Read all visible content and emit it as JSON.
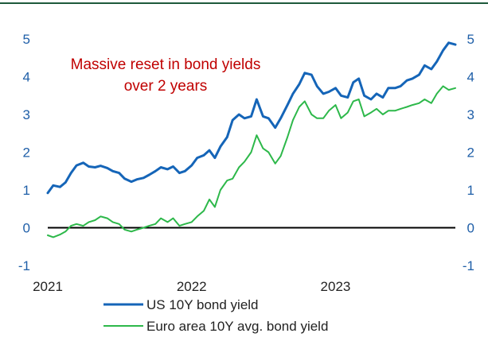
{
  "chart_data": {
    "type": "line",
    "title": "",
    "xlabel": "",
    "ylabel": "",
    "xlim": [
      "2021-01-01",
      "2023-11-01"
    ],
    "ylim": [
      -1,
      5
    ],
    "x_ticks": [
      "2021",
      "2022",
      "2023"
    ],
    "y_ticks": [
      "-1",
      "0",
      "1",
      "2",
      "3",
      "4",
      "5"
    ],
    "grid": false,
    "zero_line": true,
    "dual_y_axis_labels": true,
    "legend_position": "bottom",
    "annotation": {
      "lines": [
        "Massive reset in bond yields",
        "over 2 years"
      ],
      "color": "#c00000"
    },
    "colors": {
      "top_rule": "#1e5a3c",
      "axis_text": "#1f5fa8",
      "zero_line": "#000000"
    },
    "series": [
      {
        "name": "US 10Y bond yield",
        "color": "#1565b8",
        "points": [
          [
            "2021-01-01",
            0.92
          ],
          [
            "2021-01-15",
            1.12
          ],
          [
            "2021-02-01",
            1.08
          ],
          [
            "2021-02-15",
            1.2
          ],
          [
            "2021-03-01",
            1.45
          ],
          [
            "2021-03-15",
            1.65
          ],
          [
            "2021-04-01",
            1.72
          ],
          [
            "2021-04-15",
            1.62
          ],
          [
            "2021-05-01",
            1.6
          ],
          [
            "2021-05-15",
            1.64
          ],
          [
            "2021-06-01",
            1.58
          ],
          [
            "2021-06-15",
            1.5
          ],
          [
            "2021-07-01",
            1.45
          ],
          [
            "2021-07-15",
            1.3
          ],
          [
            "2021-08-01",
            1.22
          ],
          [
            "2021-08-15",
            1.28
          ],
          [
            "2021-09-01",
            1.32
          ],
          [
            "2021-09-15",
            1.4
          ],
          [
            "2021-10-01",
            1.5
          ],
          [
            "2021-10-15",
            1.6
          ],
          [
            "2021-11-01",
            1.55
          ],
          [
            "2021-11-15",
            1.62
          ],
          [
            "2021-12-01",
            1.45
          ],
          [
            "2021-12-15",
            1.5
          ],
          [
            "2022-01-01",
            1.65
          ],
          [
            "2022-01-15",
            1.85
          ],
          [
            "2022-02-01",
            1.92
          ],
          [
            "2022-02-15",
            2.05
          ],
          [
            "2022-03-01",
            1.85
          ],
          [
            "2022-03-15",
            2.15
          ],
          [
            "2022-04-01",
            2.4
          ],
          [
            "2022-04-15",
            2.85
          ],
          [
            "2022-05-01",
            3.0
          ],
          [
            "2022-05-15",
            2.9
          ],
          [
            "2022-06-01",
            2.95
          ],
          [
            "2022-06-15",
            3.4
          ],
          [
            "2022-07-01",
            2.95
          ],
          [
            "2022-07-15",
            2.9
          ],
          [
            "2022-08-01",
            2.65
          ],
          [
            "2022-08-15",
            2.9
          ],
          [
            "2022-09-01",
            3.25
          ],
          [
            "2022-09-15",
            3.55
          ],
          [
            "2022-10-01",
            3.8
          ],
          [
            "2022-10-15",
            4.1
          ],
          [
            "2022-11-01",
            4.05
          ],
          [
            "2022-11-15",
            3.75
          ],
          [
            "2022-12-01",
            3.55
          ],
          [
            "2022-12-15",
            3.6
          ],
          [
            "2023-01-01",
            3.7
          ],
          [
            "2023-01-15",
            3.5
          ],
          [
            "2023-02-01",
            3.45
          ],
          [
            "2023-02-15",
            3.85
          ],
          [
            "2023-03-01",
            3.95
          ],
          [
            "2023-03-15",
            3.5
          ],
          [
            "2023-04-01",
            3.4
          ],
          [
            "2023-04-15",
            3.55
          ],
          [
            "2023-05-01",
            3.45
          ],
          [
            "2023-05-15",
            3.7
          ],
          [
            "2023-06-01",
            3.7
          ],
          [
            "2023-06-15",
            3.75
          ],
          [
            "2023-07-01",
            3.9
          ],
          [
            "2023-07-15",
            3.95
          ],
          [
            "2023-08-01",
            4.05
          ],
          [
            "2023-08-15",
            4.3
          ],
          [
            "2023-09-01",
            4.2
          ],
          [
            "2023-09-15",
            4.4
          ],
          [
            "2023-10-01",
            4.7
          ],
          [
            "2023-10-15",
            4.9
          ],
          [
            "2023-11-01",
            4.85
          ]
        ]
      },
      {
        "name": "Euro area 10Y avg. bond yield",
        "color": "#2db84a",
        "points": [
          [
            "2021-01-01",
            -0.2
          ],
          [
            "2021-01-15",
            -0.25
          ],
          [
            "2021-02-01",
            -0.18
          ],
          [
            "2021-02-15",
            -0.1
          ],
          [
            "2021-03-01",
            0.05
          ],
          [
            "2021-03-15",
            0.1
          ],
          [
            "2021-04-01",
            0.05
          ],
          [
            "2021-04-15",
            0.15
          ],
          [
            "2021-05-01",
            0.2
          ],
          [
            "2021-05-15",
            0.3
          ],
          [
            "2021-06-01",
            0.25
          ],
          [
            "2021-06-15",
            0.15
          ],
          [
            "2021-07-01",
            0.1
          ],
          [
            "2021-07-15",
            -0.05
          ],
          [
            "2021-08-01",
            -0.1
          ],
          [
            "2021-08-15",
            -0.05
          ],
          [
            "2021-09-01",
            0.0
          ],
          [
            "2021-09-15",
            0.05
          ],
          [
            "2021-10-01",
            0.1
          ],
          [
            "2021-10-15",
            0.25
          ],
          [
            "2021-11-01",
            0.15
          ],
          [
            "2021-11-15",
            0.25
          ],
          [
            "2021-12-01",
            0.05
          ],
          [
            "2021-12-15",
            0.1
          ],
          [
            "2022-01-01",
            0.15
          ],
          [
            "2022-01-15",
            0.3
          ],
          [
            "2022-02-01",
            0.45
          ],
          [
            "2022-02-15",
            0.75
          ],
          [
            "2022-03-01",
            0.55
          ],
          [
            "2022-03-15",
            1.0
          ],
          [
            "2022-04-01",
            1.25
          ],
          [
            "2022-04-15",
            1.3
          ],
          [
            "2022-05-01",
            1.6
          ],
          [
            "2022-05-15",
            1.75
          ],
          [
            "2022-06-01",
            2.0
          ],
          [
            "2022-06-15",
            2.45
          ],
          [
            "2022-07-01",
            2.1
          ],
          [
            "2022-07-15",
            2.0
          ],
          [
            "2022-08-01",
            1.7
          ],
          [
            "2022-08-15",
            1.9
          ],
          [
            "2022-09-01",
            2.4
          ],
          [
            "2022-09-15",
            2.85
          ],
          [
            "2022-10-01",
            3.2
          ],
          [
            "2022-10-15",
            3.35
          ],
          [
            "2022-11-01",
            3.0
          ],
          [
            "2022-11-15",
            2.9
          ],
          [
            "2022-12-01",
            2.9
          ],
          [
            "2022-12-15",
            3.1
          ],
          [
            "2023-01-01",
            3.25
          ],
          [
            "2023-01-15",
            2.9
          ],
          [
            "2023-02-01",
            3.05
          ],
          [
            "2023-02-15",
            3.35
          ],
          [
            "2023-03-01",
            3.4
          ],
          [
            "2023-03-15",
            2.95
          ],
          [
            "2023-04-01",
            3.05
          ],
          [
            "2023-04-15",
            3.15
          ],
          [
            "2023-05-01",
            3.0
          ],
          [
            "2023-05-15",
            3.1
          ],
          [
            "2023-06-01",
            3.1
          ],
          [
            "2023-06-15",
            3.15
          ],
          [
            "2023-07-01",
            3.2
          ],
          [
            "2023-07-15",
            3.25
          ],
          [
            "2023-08-01",
            3.3
          ],
          [
            "2023-08-15",
            3.4
          ],
          [
            "2023-09-01",
            3.3
          ],
          [
            "2023-09-15",
            3.55
          ],
          [
            "2023-10-01",
            3.75
          ],
          [
            "2023-10-15",
            3.65
          ],
          [
            "2023-11-01",
            3.7
          ]
        ]
      }
    ]
  }
}
